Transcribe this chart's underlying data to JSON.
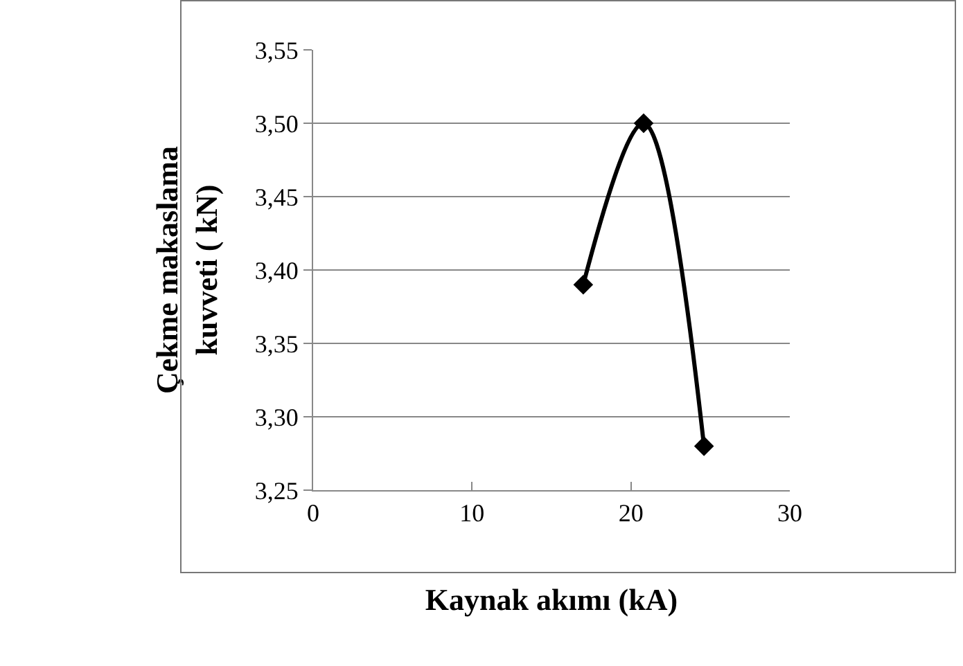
{
  "chart_data": {
    "type": "line",
    "xlabel": "Kaynak akımı (kA)",
    "ylabel": "Çekme makaslama\nkuvveti ( kN)",
    "x": [
      17,
      20.8,
      24.6
    ],
    "series": [
      {
        "color": "#000000",
        "values": [
          3.39,
          3.5,
          3.28
        ]
      }
    ],
    "xlim": [
      0,
      30
    ],
    "xticks": [
      {
        "value": 0,
        "label": "0"
      },
      {
        "value": 10,
        "label": "10"
      },
      {
        "value": 20,
        "label": "20"
      },
      {
        "value": 30,
        "label": "30"
      }
    ],
    "ylim": [
      3.25,
      3.55
    ],
    "yticks": [
      {
        "value": 3.25,
        "label": "3,25"
      },
      {
        "value": 3.3,
        "label": "3,30"
      },
      {
        "value": 3.35,
        "label": "3,35"
      },
      {
        "value": 3.4,
        "label": "3,40"
      },
      {
        "value": 3.45,
        "label": "3,45"
      },
      {
        "value": 3.5,
        "label": "3,50"
      },
      {
        "value": 3.55,
        "label": "3,55"
      }
    ],
    "grid": "y",
    "legend": false,
    "marker": "diamond",
    "line_style": "solid"
  }
}
